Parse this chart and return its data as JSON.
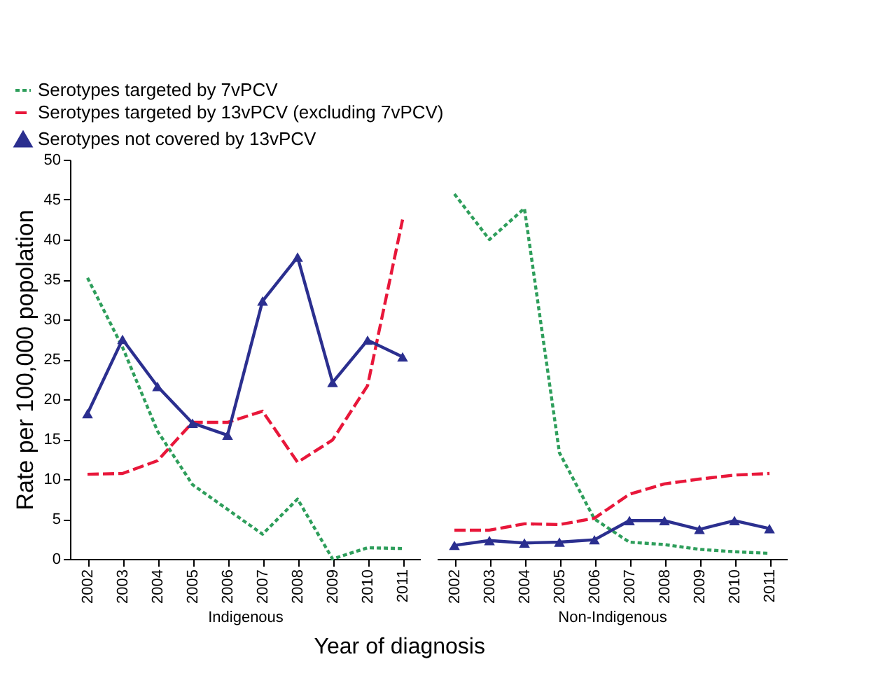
{
  "chart_data": [
    {
      "type": "line",
      "xlabel": "Indigenous",
      "ylabel": "Rate per 100,000 popolation",
      "categories": [
        "2002",
        "2003",
        "2004",
        "2005",
        "2006",
        "2007",
        "2008",
        "2009",
        "2010",
        "2011"
      ],
      "ylim": [
        0,
        50
      ],
      "yticks": [
        0,
        5,
        10,
        15,
        20,
        25,
        30,
        35,
        40,
        45,
        50
      ],
      "legend": "top left",
      "annotations": [
        "Year of diagnosis"
      ],
      "series": [
        {
          "name": "Serotypes targeted by 7vPCV",
          "color": "#2e9e5b",
          "line_style": "dotted",
          "marker": "none",
          "values": [
            35.2,
            26.5,
            16,
            9.3,
            6.2,
            3.1,
            7.5,
            0,
            1.4,
            1.3
          ]
        },
        {
          "name": "Serotypes targeted by 13vPCV (excluding 7vPCV)",
          "color": "#e8173a",
          "line_style": "dashed",
          "marker": "none",
          "values": [
            10.6,
            10.7,
            12.3,
            17.1,
            17.1,
            18.5,
            12.1,
            14.9,
            21.7,
            42.5
          ]
        },
        {
          "name": "Serotypes not covered by 13vPCV",
          "color": "#2b2f8f",
          "line_style": "solid",
          "marker": "triangle",
          "values": [
            18.2,
            27.5,
            21.6,
            17,
            15.5,
            32.3,
            37.8,
            22.1,
            27.4,
            25.3
          ]
        }
      ]
    },
    {
      "type": "line",
      "xlabel": "Non-Indigenous",
      "categories": [
        "2002",
        "2003",
        "2004",
        "2005",
        "2006",
        "2007",
        "2008",
        "2009",
        "2010",
        "2011"
      ],
      "ylim": [
        0,
        50
      ],
      "tick_labels": "x",
      "series": [
        {
          "name": "Serotypes targeted by 7vPCV",
          "color": "#2e9e5b",
          "line_style": "dotted",
          "marker": "none",
          "values": [
            45.7,
            40,
            43.9,
            13.3,
            5,
            2.1,
            1.8,
            1.2,
            0.9,
            0.7
          ]
        },
        {
          "name": "Serotypes targeted by 13vPCV (excluding 7vPCV)",
          "color": "#e8173a",
          "line_style": "dashed",
          "marker": "none",
          "values": [
            3.6,
            3.6,
            4.4,
            4.3,
            5.1,
            8.1,
            9.4,
            10,
            10.5,
            10.7
          ]
        },
        {
          "name": "Serotypes not covered by 13vPCV",
          "color": "#2b2f8f",
          "line_style": "solid",
          "marker": "triangle",
          "values": [
            1.7,
            2.3,
            2,
            2.1,
            2.4,
            4.8,
            4.8,
            3.7,
            4.8,
            3.8
          ]
        }
      ]
    }
  ]
}
